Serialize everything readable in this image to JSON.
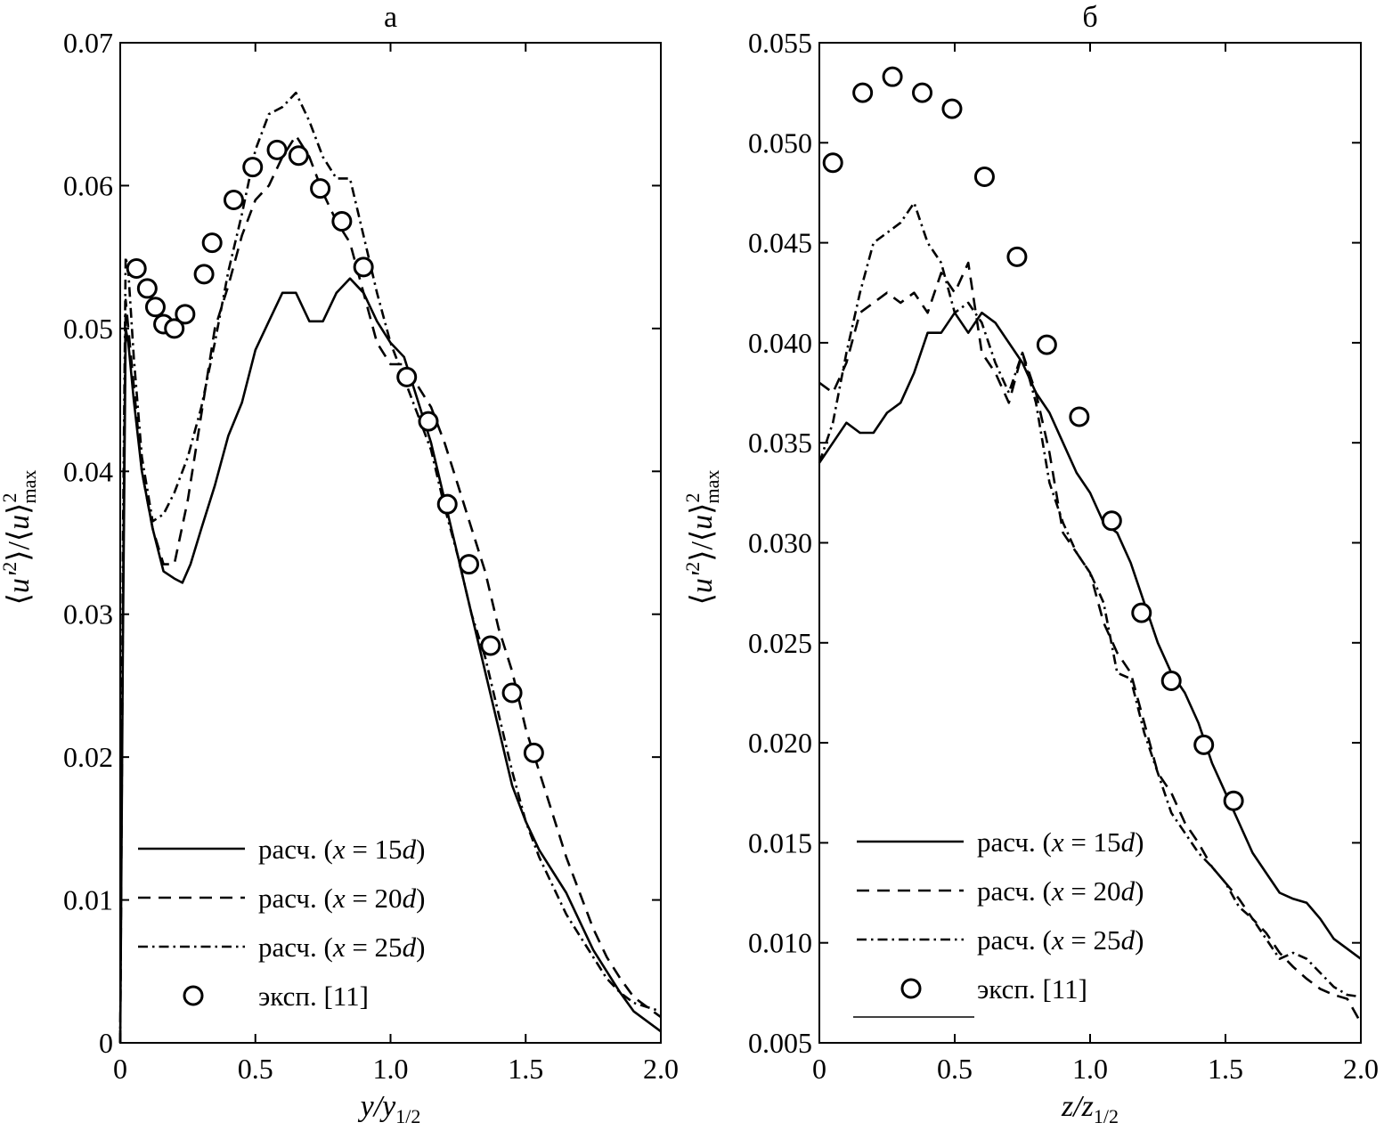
{
  "chart_data": [
    {
      "type": "line",
      "title": "а",
      "xlabel": "y/y1/2",
      "xlabel_parts": {
        "main": "y/y",
        "sub": "1/2"
      },
      "ylabel": "⟨u'²⟩/⟨u⟩²max",
      "ylabel_parts": {
        "num_open": "⟨",
        "num_var": "u'",
        "num_sup": "2",
        "num_close": "⟩/⟨",
        "den_var": "u",
        "den_close": "⟩",
        "den_sup": "2",
        "den_sub": "max"
      },
      "xlim": [
        0,
        2.0
      ],
      "ylim": [
        0,
        0.07
      ],
      "xticks": [
        0,
        0.5,
        1.0,
        1.5,
        2.0
      ],
      "xtick_labels": [
        "0",
        "0.5",
        "1.0",
        "1.5",
        "2.0"
      ],
      "yticks": [
        0,
        0.01,
        0.02,
        0.03,
        0.04,
        0.05,
        0.06,
        0.07
      ],
      "ytick_labels": [
        "0",
        "0.01",
        "0.02",
        "0.03",
        "0.04",
        "0.05",
        "0.06",
        "0.07"
      ],
      "legend_position": "bottom-left",
      "series": [
        {
          "name": "расч. (x = 15d)",
          "label_text": "расч. (",
          "var": "x",
          "eq": " = 15",
          "unit": "d",
          "close": ")",
          "style": "solid",
          "x": [
            0,
            0.01,
            0.02,
            0.03,
            0.05,
            0.08,
            0.12,
            0.16,
            0.2,
            0.23,
            0.26,
            0.3,
            0.35,
            0.4,
            0.45,
            0.5,
            0.55,
            0.6,
            0.65,
            0.7,
            0.75,
            0.8,
            0.85,
            0.9,
            0.95,
            1.0,
            1.05,
            1.1,
            1.15,
            1.2,
            1.25,
            1.3,
            1.35,
            1.4,
            1.45,
            1.5,
            1.55,
            1.6,
            1.65,
            1.7,
            1.75,
            1.8,
            1.85,
            1.9,
            2.0
          ],
          "y": [
            0.0,
            0.028,
            0.05,
            0.049,
            0.045,
            0.04,
            0.036,
            0.033,
            0.0325,
            0.0322,
            0.0335,
            0.036,
            0.039,
            0.0425,
            0.0448,
            0.0485,
            0.0505,
            0.0525,
            0.0525,
            0.0505,
            0.0505,
            0.0525,
            0.0535,
            0.0525,
            0.0505,
            0.049,
            0.048,
            0.045,
            0.042,
            0.038,
            0.034,
            0.03,
            0.026,
            0.022,
            0.018,
            0.0155,
            0.0135,
            0.012,
            0.0105,
            0.0085,
            0.0065,
            0.005,
            0.0035,
            0.0022,
            0.0008
          ]
        },
        {
          "name": "расч. (x = 20d)",
          "label_text": "расч. (",
          "var": "x",
          "eq": " = 20",
          "unit": "d",
          "close": ")",
          "style": "dashed",
          "x": [
            0,
            0.01,
            0.02,
            0.03,
            0.05,
            0.08,
            0.12,
            0.16,
            0.2,
            0.25,
            0.3,
            0.35,
            0.4,
            0.45,
            0.5,
            0.55,
            0.6,
            0.65,
            0.7,
            0.75,
            0.8,
            0.85,
            0.9,
            0.95,
            1.0,
            1.05,
            1.1,
            1.15,
            1.2,
            1.25,
            1.3,
            1.35,
            1.4,
            1.45,
            1.5,
            1.55,
            1.6,
            1.65,
            1.7,
            1.75,
            1.8,
            1.85,
            1.9,
            2.0
          ],
          "y": [
            0.0,
            0.03,
            0.052,
            0.05,
            0.046,
            0.04,
            0.036,
            0.0335,
            0.0335,
            0.038,
            0.044,
            0.05,
            0.053,
            0.0565,
            0.059,
            0.06,
            0.062,
            0.0635,
            0.062,
            0.0595,
            0.0575,
            0.056,
            0.0525,
            0.049,
            0.0475,
            0.0475,
            0.046,
            0.0445,
            0.042,
            0.039,
            0.036,
            0.033,
            0.029,
            0.026,
            0.022,
            0.019,
            0.016,
            0.013,
            0.0105,
            0.008,
            0.006,
            0.0045,
            0.0032,
            0.0018
          ]
        },
        {
          "name": "расч. (x = 25d)",
          "label_text": "расч. (",
          "var": "x",
          "eq": " = 25",
          "unit": "d",
          "close": ")",
          "style": "dashdot",
          "x": [
            0,
            0.01,
            0.02,
            0.03,
            0.05,
            0.08,
            0.12,
            0.16,
            0.2,
            0.25,
            0.3,
            0.35,
            0.4,
            0.45,
            0.5,
            0.55,
            0.6,
            0.65,
            0.7,
            0.75,
            0.8,
            0.85,
            0.9,
            0.95,
            1.0,
            1.05,
            1.1,
            1.15,
            1.2,
            1.25,
            1.3,
            1.35,
            1.4,
            1.45,
            1.5,
            1.55,
            1.6,
            1.65,
            1.7,
            1.75,
            1.8,
            1.85,
            1.9,
            2.0
          ],
          "y": [
            0.0,
            0.035,
            0.055,
            0.054,
            0.048,
            0.041,
            0.0365,
            0.037,
            0.0385,
            0.041,
            0.0445,
            0.049,
            0.054,
            0.058,
            0.0625,
            0.065,
            0.0655,
            0.0665,
            0.0645,
            0.062,
            0.0605,
            0.0605,
            0.0565,
            0.0525,
            0.049,
            0.0465,
            0.044,
            0.0415,
            0.0375,
            0.034,
            0.03,
            0.027,
            0.023,
            0.019,
            0.0155,
            0.013,
            0.011,
            0.009,
            0.0075,
            0.006,
            0.0045,
            0.0035,
            0.0028,
            0.0022
          ]
        },
        {
          "name": "эксп. [11]",
          "label_text": "эксп. [11]",
          "style": "markers",
          "x": [
            0.06,
            0.1,
            0.13,
            0.16,
            0.2,
            0.24,
            0.31,
            0.34,
            0.42,
            0.49,
            0.58,
            0.66,
            0.74,
            0.82,
            0.9,
            1.06,
            1.14,
            1.21,
            1.29,
            1.37,
            1.45,
            1.53
          ],
          "y": [
            0.0542,
            0.0528,
            0.0515,
            0.0503,
            0.05,
            0.051,
            0.0538,
            0.056,
            0.059,
            0.0613,
            0.0625,
            0.0621,
            0.0598,
            0.0575,
            0.0543,
            0.0466,
            0.0435,
            0.0377,
            0.0335,
            0.0278,
            0.0245,
            0.0203
          ]
        }
      ]
    },
    {
      "type": "line",
      "title": "б",
      "xlabel": "z/z1/2",
      "xlabel_parts": {
        "main": "z/z",
        "sub": "1/2"
      },
      "ylabel": "⟨u'²⟩/⟨u⟩²max",
      "ylabel_parts": {
        "num_open": "⟨",
        "num_var": "u'",
        "num_sup": "2",
        "num_close": "⟩/⟨",
        "den_var": "u",
        "den_close": "⟩",
        "den_sup": "2",
        "den_sub": "max"
      },
      "xlim": [
        0,
        2.0
      ],
      "ylim": [
        0.005,
        0.055
      ],
      "xticks": [
        0,
        0.5,
        1.0,
        1.5,
        2.0
      ],
      "xtick_labels": [
        "0",
        "0.5",
        "1.0",
        "1.5",
        "2.0"
      ],
      "yticks": [
        0.005,
        0.01,
        0.015,
        0.02,
        0.025,
        0.03,
        0.035,
        0.04,
        0.045,
        0.05,
        0.055
      ],
      "ytick_labels": [
        "0.005",
        "0.010",
        "0.015",
        "0.020",
        "0.025",
        "0.030",
        "0.035",
        "0.040",
        "0.045",
        "0.050",
        "0.055"
      ],
      "legend_position": "bottom-left",
      "series": [
        {
          "name": "расч. (x = 15d)",
          "label_text": "расч. (",
          "var": "x",
          "eq": " = 15",
          "unit": "d",
          "close": ")",
          "style": "solid",
          "x": [
            0,
            0.05,
            0.1,
            0.15,
            0.2,
            0.25,
            0.3,
            0.35,
            0.4,
            0.45,
            0.5,
            0.55,
            0.6,
            0.65,
            0.7,
            0.75,
            0.8,
            0.85,
            0.9,
            0.95,
            1.0,
            1.05,
            1.1,
            1.15,
            1.2,
            1.25,
            1.3,
            1.35,
            1.4,
            1.45,
            1.5,
            1.55,
            1.6,
            1.65,
            1.7,
            1.75,
            1.8,
            1.85,
            1.9,
            1.95,
            2.0
          ],
          "y": [
            0.034,
            0.035,
            0.036,
            0.0355,
            0.0355,
            0.0365,
            0.037,
            0.0385,
            0.0405,
            0.0405,
            0.0415,
            0.0405,
            0.0415,
            0.041,
            0.04,
            0.039,
            0.0375,
            0.0365,
            0.035,
            0.0335,
            0.0325,
            0.031,
            0.0305,
            0.029,
            0.027,
            0.025,
            0.0235,
            0.0225,
            0.021,
            0.019,
            0.0175,
            0.016,
            0.0145,
            0.0135,
            0.0125,
            0.0122,
            0.012,
            0.0112,
            0.0102,
            0.0097,
            0.0092
          ]
        },
        {
          "name": "расч. (x = 20d)",
          "label_text": "расч. (",
          "var": "x",
          "eq": " = 20",
          "unit": "d",
          "close": ")",
          "style": "dashed",
          "x": [
            0,
            0.05,
            0.1,
            0.15,
            0.2,
            0.25,
            0.3,
            0.35,
            0.4,
            0.45,
            0.5,
            0.55,
            0.6,
            0.65,
            0.7,
            0.75,
            0.8,
            0.85,
            0.9,
            0.95,
            1.0,
            1.05,
            1.1,
            1.15,
            1.2,
            1.25,
            1.3,
            1.35,
            1.4,
            1.45,
            1.5,
            1.55,
            1.6,
            1.65,
            1.7,
            1.75,
            1.8,
            1.85,
            1.9,
            1.95,
            2.0
          ],
          "y": [
            0.038,
            0.0375,
            0.039,
            0.0415,
            0.042,
            0.0425,
            0.042,
            0.0425,
            0.0415,
            0.0435,
            0.0425,
            0.044,
            0.0395,
            0.0385,
            0.037,
            0.0395,
            0.0375,
            0.0345,
            0.0305,
            0.0295,
            0.0285,
            0.026,
            0.0245,
            0.0235,
            0.021,
            0.0185,
            0.0175,
            0.016,
            0.015,
            0.0138,
            0.013,
            0.0122,
            0.0112,
            0.0105,
            0.0095,
            0.0088,
            0.0082,
            0.0077,
            0.0074,
            0.0072,
            0.006
          ]
        },
        {
          "name": "расч. (x = 25d)",
          "label_text": "расч. (",
          "var": "x",
          "eq": " = 25",
          "unit": "d",
          "close": ")",
          "style": "dashdot",
          "x": [
            0,
            0.05,
            0.1,
            0.15,
            0.2,
            0.25,
            0.3,
            0.35,
            0.4,
            0.45,
            0.5,
            0.55,
            0.6,
            0.65,
            0.7,
            0.75,
            0.8,
            0.85,
            0.9,
            0.95,
            1.0,
            1.05,
            1.1,
            1.15,
            1.2,
            1.25,
            1.3,
            1.35,
            1.4,
            1.45,
            1.5,
            1.55,
            1.6,
            1.65,
            1.7,
            1.75,
            1.8,
            1.85,
            1.9,
            1.95,
            2.0
          ],
          "y": [
            0.034,
            0.036,
            0.0395,
            0.0425,
            0.045,
            0.0455,
            0.046,
            0.047,
            0.045,
            0.044,
            0.0415,
            0.042,
            0.041,
            0.039,
            0.0375,
            0.0395,
            0.037,
            0.033,
            0.031,
            0.0295,
            0.0285,
            0.027,
            0.0235,
            0.0232,
            0.0205,
            0.0185,
            0.0165,
            0.0155,
            0.0145,
            0.0138,
            0.013,
            0.0118,
            0.0112,
            0.0102,
            0.0092,
            0.0095,
            0.0092,
            0.0085,
            0.0078,
            0.0074,
            0.0073
          ]
        },
        {
          "name": "эксп. [11]",
          "label_text": "эксп. [11]",
          "style": "markers",
          "x": [
            0.05,
            0.16,
            0.27,
            0.38,
            0.49,
            0.61,
            0.73,
            0.84,
            0.96,
            1.08,
            1.19,
            1.3,
            1.42,
            1.53
          ],
          "y": [
            0.049,
            0.0525,
            0.0533,
            0.0525,
            0.0517,
            0.0483,
            0.0443,
            0.0399,
            0.0363,
            0.0311,
            0.0265,
            0.0231,
            0.0199,
            0.0171
          ]
        }
      ]
    }
  ]
}
